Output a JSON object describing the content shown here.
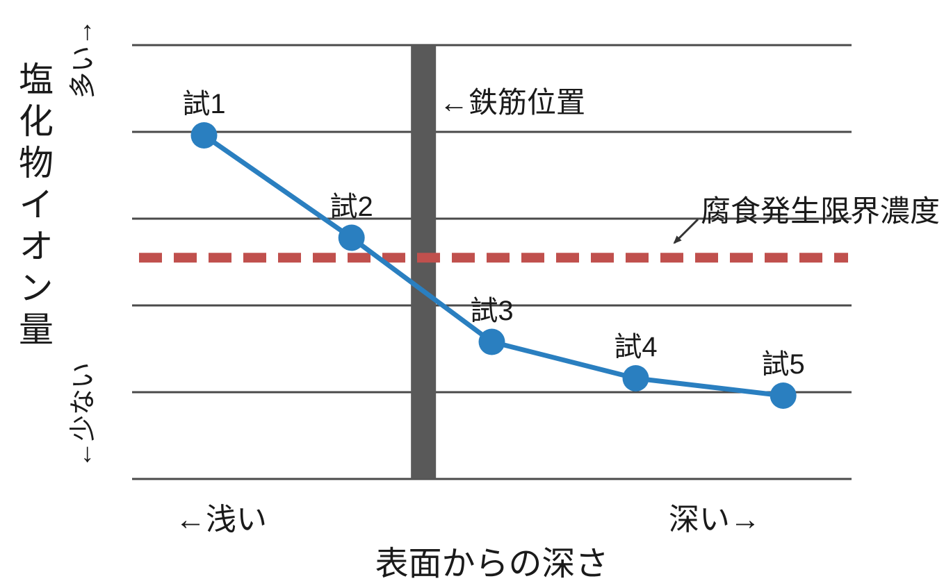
{
  "chart_data": {
    "type": "line",
    "title": "",
    "xlabel": "表面からの深さ",
    "ylabel": "塩化物イオン量",
    "y_axis_end_labels": {
      "top": "多い→",
      "bottom": "←少ない"
    },
    "x_axis_end_labels": {
      "left": "←浅い",
      "right": "深い→"
    },
    "ylim": [
      0,
      5
    ],
    "grid": true,
    "gridline_values": [
      0,
      1,
      2,
      3,
      4,
      5
    ],
    "x_axis_note": "qualitative axis, no numeric ticks; x given as fraction of axis width",
    "series": [
      {
        "name": "塩化物イオン量",
        "color": "#2a7fc0",
        "points": [
          {
            "label": "試1",
            "x": 0.1,
            "y": 3.96
          },
          {
            "label": "試2",
            "x": 0.305,
            "y": 2.78
          },
          {
            "label": "試3",
            "x": 0.5,
            "y": 1.58
          },
          {
            "label": "試4",
            "x": 0.7,
            "y": 1.16
          },
          {
            "label": "試5",
            "x": 0.905,
            "y": 0.96
          }
        ]
      }
    ],
    "threshold_line": {
      "label": "腐食発生限界濃度",
      "y": 2.55,
      "style": "dashed",
      "color": "#c0504d"
    },
    "rebar_marker": {
      "label": "←鉄筋位置",
      "x": 0.405,
      "color": "#595959"
    },
    "colors": {
      "grid": "#4a4a4a",
      "text": "#1a1a1a",
      "arrow": "#333333"
    }
  }
}
